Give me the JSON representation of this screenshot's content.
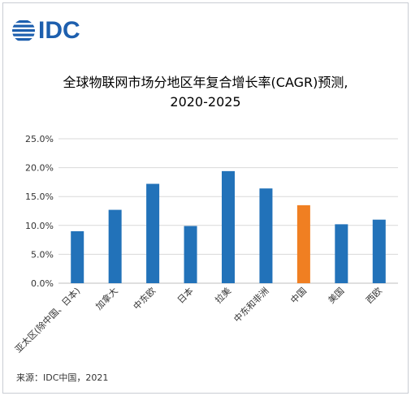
{
  "brand": {
    "logo_text": "IDC",
    "logo_icon": "idc-globe-logo",
    "color": "#1d5fae"
  },
  "title_line1": "全球物联网市场分地区年复合增长率(CAGR)预测,",
  "title_line2": "2020-2025",
  "source": "来源：IDC中国，2021",
  "chart_data": {
    "type": "bar",
    "title": "全球物联网市场分地区年复合增长率(CAGR)预测, 2020-2025",
    "xlabel": "",
    "ylabel": "",
    "categories": [
      "亚太区(除中国、日本)",
      "加拿大",
      "中东欧",
      "日本",
      "拉美",
      "中东和非洲",
      "中国",
      "美国",
      "西欧"
    ],
    "values": [
      9.0,
      12.7,
      17.2,
      9.9,
      19.4,
      16.4,
      13.5,
      10.2,
      11.0
    ],
    "highlight_index": 6,
    "colors": {
      "default": "#2272b9",
      "highlight": "#f07f22"
    },
    "ylim": [
      0,
      25
    ],
    "yticks": [
      0,
      5,
      10,
      15,
      20,
      25
    ],
    "ytick_labels": [
      "0.0%",
      "5.0%",
      "10.0%",
      "15.0%",
      "20.0%",
      "25.0%"
    ],
    "grid": true,
    "legend": "none"
  }
}
